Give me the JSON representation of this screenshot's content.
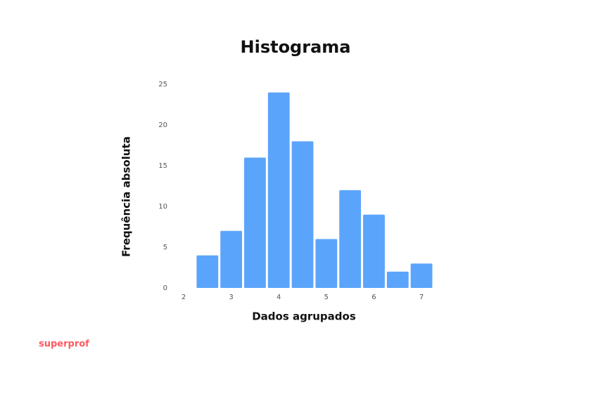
{
  "chart_data": {
    "type": "histogram",
    "title": "Histograma",
    "x_label": "Dados agrupados",
    "y_label": "Frequência absoluta",
    "bins": [
      2.25,
      2.75,
      3.25,
      3.75,
      4.25,
      4.75,
      5.25,
      5.75,
      6.25,
      6.75,
      7.25
    ],
    "values": [
      4,
      7,
      16,
      24,
      18,
      6,
      12,
      9,
      2,
      3
    ],
    "color": "#5ba4fc",
    "xlim": [
      2,
      7.25
    ],
    "xticks": [
      2,
      3,
      4,
      5,
      6,
      7
    ],
    "ylim": [
      0,
      25
    ],
    "yticks": [
      0,
      5,
      10,
      15,
      20,
      25
    ],
    "grid": false
  },
  "brand": "superprof"
}
